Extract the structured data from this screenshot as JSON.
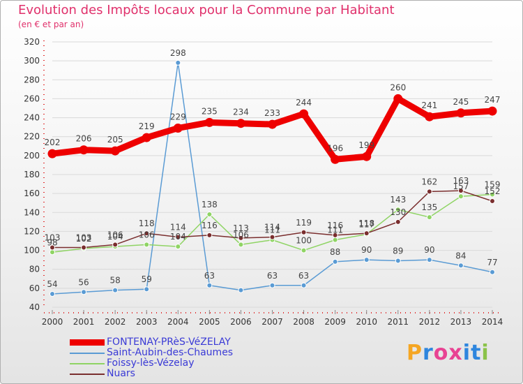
{
  "title": "Evolution des Impôts locaux pour la Commune par Habitant",
  "subtitle": "(en € et par an)",
  "logo": {
    "text": "Proxiti",
    "letters": [
      "P",
      "r",
      "o",
      "x",
      "i",
      "t",
      "i"
    ],
    "colors": [
      "#f5a623",
      "#2e86de",
      "#e84393",
      "#e84393",
      "#2e86de",
      "#2e86de",
      "#8bc34a"
    ]
  },
  "chart_data": {
    "type": "line",
    "title": "Evolution des Impôts locaux pour la Commune par Habitant",
    "subtitle": "(en € et par an)",
    "x": [
      "2000",
      "2001",
      "2002",
      "2003",
      "2004",
      "2005",
      "2006",
      "2007",
      "2008",
      "2009",
      "2010",
      "2011",
      "2012",
      "2013",
      "2014"
    ],
    "ylim": [
      40,
      320
    ],
    "yticks": [
      40,
      60,
      80,
      100,
      120,
      140,
      160,
      180,
      200,
      220,
      240,
      260,
      280,
      300,
      320
    ],
    "grid": "y-major",
    "legend_position": "bottom-left",
    "series": [
      {
        "name": "FONTENAY-PRèS-VéZELAY",
        "color": "#ee0000",
        "values": [
          202,
          206,
          205,
          219,
          229,
          235,
          234,
          233,
          244,
          196,
          199,
          260,
          241,
          245,
          247
        ],
        "labels": [
          "202",
          "206",
          "205",
          "219",
          "229",
          "235",
          "234",
          "233",
          "244",
          "196",
          "199",
          "260",
          "241",
          "245",
          "247"
        ]
      },
      {
        "name": "Saint-Aubin-des-Chaumes",
        "color": "#5a9bd4",
        "values": [
          54,
          56,
          58,
          59,
          298,
          63,
          58,
          63,
          63,
          88,
          90,
          89,
          90,
          84,
          77
        ],
        "labels": [
          "54",
          "56",
          "58",
          "59",
          "298",
          "63",
          "",
          "63",
          "63",
          "88",
          "90",
          "89",
          "90",
          "84",
          "77"
        ]
      },
      {
        "name": "Foissy-lès-Vézelay",
        "color": "#8fd464",
        "values": [
          98,
          102,
          104,
          106,
          104,
          138,
          106,
          111,
          100,
          111,
          117,
          143,
          135,
          157,
          159
        ],
        "labels": [
          "98",
          "102",
          "104",
          "106",
          "104",
          "138",
          "106",
          "111",
          "100",
          "111",
          "117",
          "143",
          "135",
          "157",
          "159"
        ]
      },
      {
        "name": "Nuars",
        "color": "#7a2e2e",
        "values": [
          103,
          103,
          106,
          118,
          114,
          116,
          113,
          114,
          119,
          116,
          118,
          130,
          162,
          163,
          152
        ],
        "labels": [
          "103",
          "103",
          "106",
          "118",
          "114",
          "116",
          "113",
          "114",
          "119",
          "116",
          "118",
          "130",
          "162",
          "163",
          "152"
        ]
      }
    ]
  }
}
